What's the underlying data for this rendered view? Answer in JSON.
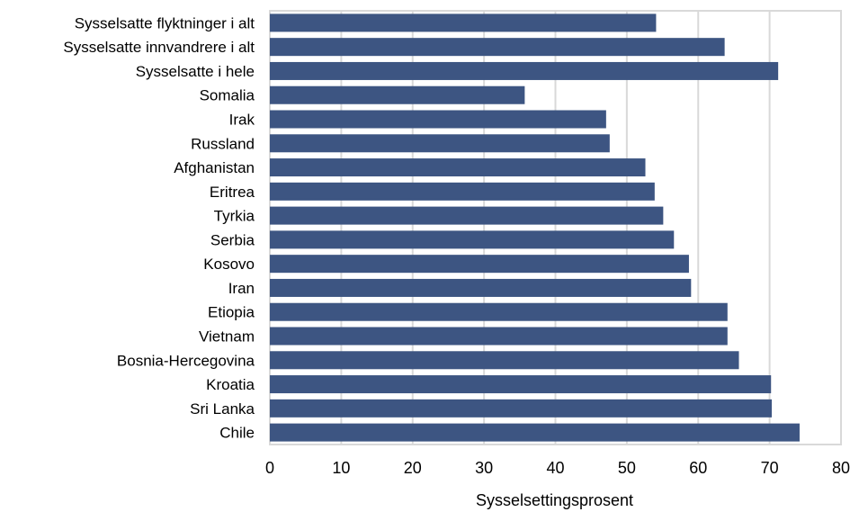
{
  "chart_data": {
    "type": "bar",
    "orientation": "horizontal",
    "categories": [
      "Sysselsatte flyktninger i alt",
      "Sysselsatte innvandrere i alt",
      "Sysselsatte i hele",
      "Somalia",
      "Irak",
      "Russland",
      "Afghanistan",
      "Eritrea",
      "Tyrkia",
      "Serbia",
      "Kosovo",
      "Iran",
      "Etiopia",
      "Vietnam",
      "Bosnia-Hercegovina",
      "Kroatia",
      "Sri Lanka",
      "Chile"
    ],
    "values": [
      54.1,
      63.7,
      71.2,
      35.7,
      47.1,
      47.6,
      52.6,
      53.9,
      55.1,
      56.6,
      58.7,
      59.0,
      64.1,
      64.1,
      65.7,
      70.2,
      70.3,
      74.2
    ],
    "xlabel": "Sysselsettingsprosent",
    "ylabel": "",
    "xlim": [
      0,
      80
    ],
    "xticks": [
      0,
      10,
      20,
      30,
      40,
      50,
      60,
      70,
      80
    ],
    "grid": true,
    "legend": "none",
    "bar_color": "#3d5582",
    "grid_color": "#d9d9d9"
  }
}
